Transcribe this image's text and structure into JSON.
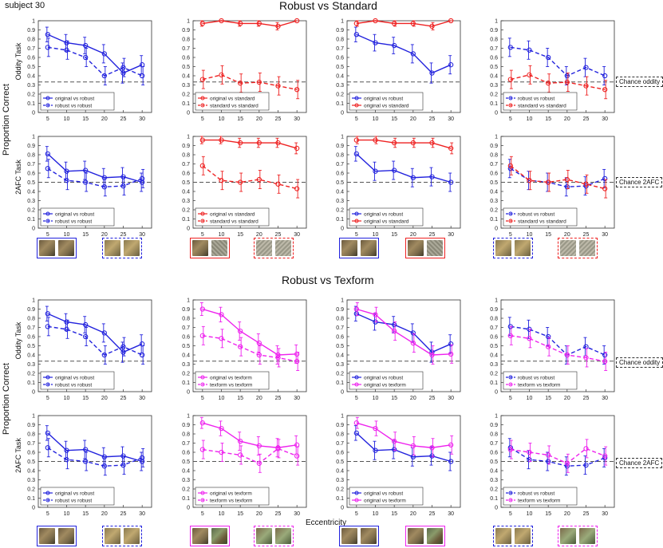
{
  "header": {
    "subject": "subject 30",
    "title_top": "Robust vs Standard",
    "title_bottom": "Robust vs Texform",
    "xlabel": "Eccentricity",
    "ylabel_left": "Proportion Correct",
    "row_oddity": "Oddity Task",
    "row_2afc": "2AFC Task",
    "chance_oddity": "Chance oddity",
    "chance_2afc": "Chance 2AFC"
  },
  "colors": {
    "robust": "#2222dd",
    "standard": "#ee2222",
    "texform": "#ee22ee",
    "chance": "#555555"
  },
  "thumbnail_rows": [
    [
      {
        "border": "#2222dd",
        "dashed": false,
        "kind": "cat"
      },
      {
        "border": "#2222dd",
        "dashed": true,
        "kind": "robust"
      },
      {
        "border": "#ee2222",
        "dashed": false,
        "kind": "noise"
      },
      {
        "border": "#ee2222",
        "dashed": true,
        "kind": "noise2"
      },
      {
        "border": "#2222dd",
        "dashed": false,
        "kind": "cat"
      },
      {
        "border": "#ee2222",
        "dashed": false,
        "kind": "noise"
      },
      {
        "border": "#2222dd",
        "dashed": true,
        "kind": "robust"
      },
      {
        "border": "#ee2222",
        "dashed": true,
        "kind": "noise2"
      }
    ],
    [
      {
        "border": "#2222dd",
        "dashed": false,
        "kind": "cat"
      },
      {
        "border": "#2222dd",
        "dashed": true,
        "kind": "robust"
      },
      {
        "border": "#ee22ee",
        "dashed": false,
        "kind": "tex"
      },
      {
        "border": "#ee22ee",
        "dashed": true,
        "kind": "tex2"
      },
      {
        "border": "#2222dd",
        "dashed": false,
        "kind": "cat"
      },
      {
        "border": "#ee22ee",
        "dashed": false,
        "kind": "tex"
      },
      {
        "border": "#2222dd",
        "dashed": true,
        "kind": "robust"
      },
      {
        "border": "#ee22ee",
        "dashed": true,
        "kind": "tex2"
      }
    ]
  ],
  "chart_data": [
    {
      "type": "line",
      "task": "Oddity Task",
      "section": "Robust vs Standard",
      "x": [
        5,
        10,
        15,
        20,
        25,
        30
      ],
      "ylim": [
        0,
        1
      ],
      "chance": 0.333,
      "series": [
        {
          "name": "original vs robust",
          "color": "#2222dd",
          "dashed": false,
          "values": [
            0.85,
            0.76,
            0.73,
            0.64,
            0.43,
            0.52
          ],
          "err": [
            0.08,
            0.09,
            0.09,
            0.1,
            0.11,
            0.1
          ]
        },
        {
          "name": "robust vs robust",
          "color": "#2222dd",
          "dashed": true,
          "values": [
            0.71,
            0.68,
            0.6,
            0.4,
            0.49,
            0.4
          ],
          "err": [
            0.1,
            0.1,
            0.1,
            0.1,
            0.1,
            0.1
          ]
        }
      ]
    },
    {
      "type": "line",
      "task": "Oddity Task",
      "section": "Robust vs Standard",
      "x": [
        5,
        10,
        15,
        20,
        25,
        30
      ],
      "ylim": [
        0,
        1
      ],
      "chance": 0.333,
      "series": [
        {
          "name": "original vs standard",
          "color": "#ee2222",
          "dashed": false,
          "values": [
            0.97,
            1.0,
            0.97,
            0.97,
            0.94,
            1.0
          ],
          "err": [
            0.03,
            0.0,
            0.03,
            0.03,
            0.04,
            0.0
          ]
        },
        {
          "name": "standard vs standard",
          "color": "#ee2222",
          "dashed": true,
          "values": [
            0.36,
            0.41,
            0.32,
            0.33,
            0.29,
            0.25
          ],
          "err": [
            0.1,
            0.1,
            0.1,
            0.1,
            0.1,
            0.1
          ]
        }
      ]
    },
    {
      "type": "line",
      "task": "Oddity Task",
      "section": "Robust vs Standard",
      "x": [
        5,
        10,
        15,
        20,
        25,
        30
      ],
      "ylim": [
        0,
        1
      ],
      "chance": 0.333,
      "series": [
        {
          "name": "original vs robust",
          "color": "#2222dd",
          "dashed": false,
          "values": [
            0.85,
            0.76,
            0.73,
            0.64,
            0.43,
            0.52
          ],
          "err": [
            0.08,
            0.09,
            0.09,
            0.1,
            0.11,
            0.1
          ]
        },
        {
          "name": "original vs standard",
          "color": "#ee2222",
          "dashed": false,
          "values": [
            0.97,
            1.0,
            0.97,
            0.97,
            0.94,
            1.0
          ],
          "err": [
            0.03,
            0.0,
            0.03,
            0.03,
            0.04,
            0.0
          ]
        }
      ]
    },
    {
      "type": "line",
      "task": "Oddity Task",
      "section": "Robust vs Standard",
      "x": [
        5,
        10,
        15,
        20,
        25,
        30
      ],
      "ylim": [
        0,
        1
      ],
      "chance": 0.333,
      "series": [
        {
          "name": "robust vs robust",
          "color": "#2222dd",
          "dashed": true,
          "values": [
            0.71,
            0.68,
            0.6,
            0.4,
            0.49,
            0.4
          ],
          "err": [
            0.1,
            0.1,
            0.1,
            0.1,
            0.1,
            0.1
          ]
        },
        {
          "name": "standard vs standard",
          "color": "#ee2222",
          "dashed": true,
          "values": [
            0.36,
            0.41,
            0.32,
            0.33,
            0.29,
            0.25
          ],
          "err": [
            0.1,
            0.1,
            0.1,
            0.1,
            0.1,
            0.1
          ]
        }
      ]
    },
    {
      "type": "line",
      "task": "2AFC Task",
      "section": "Robust vs Standard",
      "x": [
        5,
        10,
        15,
        20,
        25,
        30
      ],
      "ylim": [
        0,
        1
      ],
      "chance": 0.5,
      "series": [
        {
          "name": "original vs robust",
          "color": "#2222dd",
          "dashed": false,
          "values": [
            0.81,
            0.62,
            0.63,
            0.55,
            0.56,
            0.5
          ],
          "err": [
            0.08,
            0.1,
            0.1,
            0.1,
            0.1,
            0.1
          ]
        },
        {
          "name": "robust vs robust",
          "color": "#2222dd",
          "dashed": true,
          "values": [
            0.65,
            0.52,
            0.5,
            0.45,
            0.46,
            0.54
          ],
          "err": [
            0.1,
            0.1,
            0.1,
            0.1,
            0.1,
            0.1
          ]
        }
      ]
    },
    {
      "type": "line",
      "task": "2AFC Task",
      "section": "Robust vs Standard",
      "x": [
        5,
        10,
        15,
        20,
        25,
        30
      ],
      "ylim": [
        0,
        1
      ],
      "chance": 0.5,
      "series": [
        {
          "name": "original vs standard",
          "color": "#ee2222",
          "dashed": false,
          "values": [
            0.96,
            0.96,
            0.93,
            0.93,
            0.93,
            0.87
          ],
          "err": [
            0.04,
            0.04,
            0.05,
            0.05,
            0.05,
            0.06
          ]
        },
        {
          "name": "standard vs standard",
          "color": "#ee2222",
          "dashed": true,
          "values": [
            0.68,
            0.52,
            0.5,
            0.53,
            0.48,
            0.43
          ],
          "err": [
            0.1,
            0.1,
            0.1,
            0.1,
            0.1,
            0.1
          ]
        }
      ]
    },
    {
      "type": "line",
      "task": "2AFC Task",
      "section": "Robust vs Standard",
      "x": [
        5,
        10,
        15,
        20,
        25,
        30
      ],
      "ylim": [
        0,
        1
      ],
      "chance": 0.5,
      "series": [
        {
          "name": "original vs robust",
          "color": "#2222dd",
          "dashed": false,
          "values": [
            0.81,
            0.62,
            0.63,
            0.55,
            0.56,
            0.5
          ],
          "err": [
            0.08,
            0.1,
            0.1,
            0.1,
            0.1,
            0.1
          ]
        },
        {
          "name": "original vs standard",
          "color": "#ee2222",
          "dashed": false,
          "values": [
            0.96,
            0.96,
            0.93,
            0.93,
            0.93,
            0.87
          ],
          "err": [
            0.04,
            0.04,
            0.05,
            0.05,
            0.05,
            0.06
          ]
        }
      ]
    },
    {
      "type": "line",
      "task": "2AFC Task",
      "section": "Robust vs Standard",
      "x": [
        5,
        10,
        15,
        20,
        25,
        30
      ],
      "ylim": [
        0,
        1
      ],
      "chance": 0.5,
      "series": [
        {
          "name": "robust vs robust",
          "color": "#2222dd",
          "dashed": true,
          "values": [
            0.65,
            0.52,
            0.5,
            0.45,
            0.46,
            0.54
          ],
          "err": [
            0.1,
            0.1,
            0.1,
            0.1,
            0.1,
            0.1
          ]
        },
        {
          "name": "standard vs standard",
          "color": "#ee2222",
          "dashed": true,
          "values": [
            0.68,
            0.52,
            0.5,
            0.53,
            0.48,
            0.43
          ],
          "err": [
            0.1,
            0.1,
            0.1,
            0.1,
            0.1,
            0.1
          ]
        }
      ]
    },
    {
      "type": "line",
      "task": "Oddity Task",
      "section": "Robust vs Texform",
      "x": [
        5,
        10,
        15,
        20,
        25,
        30
      ],
      "ylim": [
        0,
        1
      ],
      "chance": 0.333,
      "series": [
        {
          "name": "original vs robust",
          "color": "#2222dd",
          "dashed": false,
          "values": [
            0.85,
            0.76,
            0.73,
            0.64,
            0.43,
            0.52
          ],
          "err": [
            0.08,
            0.09,
            0.09,
            0.1,
            0.11,
            0.1
          ]
        },
        {
          "name": "robust vs robust",
          "color": "#2222dd",
          "dashed": true,
          "values": [
            0.71,
            0.68,
            0.6,
            0.4,
            0.49,
            0.4
          ],
          "err": [
            0.1,
            0.1,
            0.1,
            0.1,
            0.1,
            0.1
          ]
        }
      ]
    },
    {
      "type": "line",
      "task": "Oddity Task",
      "section": "Robust vs Texform",
      "x": [
        5,
        10,
        15,
        20,
        25,
        30
      ],
      "ylim": [
        0,
        1
      ],
      "chance": 0.333,
      "series": [
        {
          "name": "original vs texform",
          "color": "#ee22ee",
          "dashed": false,
          "values": [
            0.9,
            0.84,
            0.66,
            0.53,
            0.4,
            0.41
          ],
          "err": [
            0.07,
            0.08,
            0.1,
            0.1,
            0.1,
            0.1
          ]
        },
        {
          "name": "texform vs texform",
          "color": "#ee22ee",
          "dashed": true,
          "values": [
            0.61,
            0.58,
            0.49,
            0.4,
            0.37,
            0.33
          ],
          "err": [
            0.1,
            0.1,
            0.1,
            0.1,
            0.1,
            0.1
          ]
        }
      ]
    },
    {
      "type": "line",
      "task": "Oddity Task",
      "section": "Robust vs Texform",
      "x": [
        5,
        10,
        15,
        20,
        25,
        30
      ],
      "ylim": [
        0,
        1
      ],
      "chance": 0.333,
      "series": [
        {
          "name": "original vs robust",
          "color": "#2222dd",
          "dashed": false,
          "values": [
            0.85,
            0.76,
            0.73,
            0.64,
            0.43,
            0.52
          ],
          "err": [
            0.08,
            0.09,
            0.09,
            0.1,
            0.11,
            0.1
          ]
        },
        {
          "name": "original vs texform",
          "color": "#ee22ee",
          "dashed": false,
          "values": [
            0.9,
            0.84,
            0.66,
            0.53,
            0.4,
            0.41
          ],
          "err": [
            0.07,
            0.08,
            0.1,
            0.1,
            0.1,
            0.1
          ]
        }
      ]
    },
    {
      "type": "line",
      "task": "Oddity Task",
      "section": "Robust vs Texform",
      "x": [
        5,
        10,
        15,
        20,
        25,
        30
      ],
      "ylim": [
        0,
        1
      ],
      "chance": 0.333,
      "series": [
        {
          "name": "robust vs robust",
          "color": "#2222dd",
          "dashed": true,
          "values": [
            0.71,
            0.68,
            0.6,
            0.4,
            0.49,
            0.4
          ],
          "err": [
            0.1,
            0.1,
            0.1,
            0.1,
            0.1,
            0.1
          ]
        },
        {
          "name": "texform vs texform",
          "color": "#ee22ee",
          "dashed": true,
          "values": [
            0.61,
            0.58,
            0.49,
            0.4,
            0.37,
            0.33
          ],
          "err": [
            0.1,
            0.1,
            0.1,
            0.1,
            0.1,
            0.1
          ]
        }
      ]
    },
    {
      "type": "line",
      "task": "2AFC Task",
      "section": "Robust vs Texform",
      "x": [
        5,
        10,
        15,
        20,
        25,
        30
      ],
      "ylim": [
        0,
        1
      ],
      "chance": 0.5,
      "series": [
        {
          "name": "original vs robust",
          "color": "#2222dd",
          "dashed": false,
          "values": [
            0.81,
            0.62,
            0.63,
            0.55,
            0.56,
            0.5
          ],
          "err": [
            0.08,
            0.1,
            0.1,
            0.1,
            0.1,
            0.1
          ]
        },
        {
          "name": "robust vs robust",
          "color": "#2222dd",
          "dashed": true,
          "values": [
            0.65,
            0.52,
            0.5,
            0.45,
            0.46,
            0.54
          ],
          "err": [
            0.1,
            0.1,
            0.1,
            0.1,
            0.1,
            0.1
          ]
        }
      ]
    },
    {
      "type": "line",
      "task": "2AFC Task",
      "section": "Robust vs Texform",
      "x": [
        5,
        10,
        15,
        20,
        25,
        30
      ],
      "ylim": [
        0,
        1
      ],
      "chance": 0.5,
      "series": [
        {
          "name": "original vs texform",
          "color": "#ee22ee",
          "dashed": false,
          "values": [
            0.92,
            0.86,
            0.72,
            0.67,
            0.65,
            0.68
          ],
          "err": [
            0.06,
            0.08,
            0.1,
            0.1,
            0.1,
            0.1
          ]
        },
        {
          "name": "texform vs texform",
          "color": "#ee22ee",
          "dashed": true,
          "values": [
            0.63,
            0.6,
            0.57,
            0.48,
            0.64,
            0.56
          ],
          "err": [
            0.1,
            0.1,
            0.1,
            0.1,
            0.1,
            0.1
          ]
        }
      ]
    },
    {
      "type": "line",
      "task": "2AFC Task",
      "section": "Robust vs Texform",
      "x": [
        5,
        10,
        15,
        20,
        25,
        30
      ],
      "ylim": [
        0,
        1
      ],
      "chance": 0.5,
      "series": [
        {
          "name": "original vs robust",
          "color": "#2222dd",
          "dashed": false,
          "values": [
            0.81,
            0.62,
            0.63,
            0.55,
            0.56,
            0.5
          ],
          "err": [
            0.08,
            0.1,
            0.1,
            0.1,
            0.1,
            0.1
          ]
        },
        {
          "name": "original vs texform",
          "color": "#ee22ee",
          "dashed": false,
          "values": [
            0.92,
            0.86,
            0.72,
            0.67,
            0.65,
            0.68
          ],
          "err": [
            0.06,
            0.08,
            0.1,
            0.1,
            0.1,
            0.1
          ]
        }
      ]
    },
    {
      "type": "line",
      "task": "2AFC Task",
      "section": "Robust vs Texform",
      "x": [
        5,
        10,
        15,
        20,
        25,
        30
      ],
      "ylim": [
        0,
        1
      ],
      "chance": 0.5,
      "series": [
        {
          "name": "robust vs robust",
          "color": "#2222dd",
          "dashed": true,
          "values": [
            0.65,
            0.52,
            0.5,
            0.45,
            0.46,
            0.54
          ],
          "err": [
            0.1,
            0.1,
            0.1,
            0.1,
            0.1,
            0.1
          ]
        },
        {
          "name": "texform vs texform",
          "color": "#ee22ee",
          "dashed": true,
          "values": [
            0.63,
            0.6,
            0.57,
            0.48,
            0.64,
            0.56
          ],
          "err": [
            0.1,
            0.1,
            0.1,
            0.1,
            0.1,
            0.1
          ]
        }
      ]
    }
  ]
}
